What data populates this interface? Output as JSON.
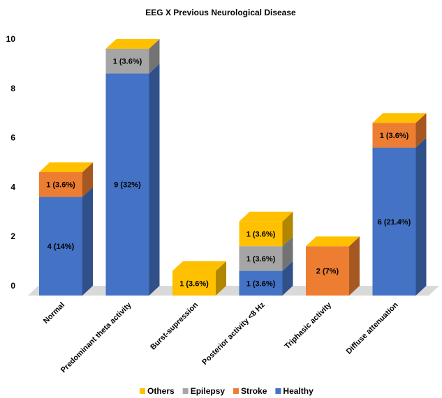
{
  "chart_data": {
    "type": "bar",
    "stacked": true,
    "style": "3d-column",
    "title": "EEG X Previous Neurological Disease",
    "xlabel": "",
    "ylabel": "",
    "ylim": [
      0,
      10
    ],
    "yticks": [
      "0",
      "2",
      "4",
      "6",
      "8",
      "10"
    ],
    "grid": false,
    "legend_position": "bottom",
    "categories": [
      "Normal",
      "Predominant theta activity",
      "Burst-supression",
      "Posterior activity <8 Hz",
      "Triphasic activity",
      "Diffuse attenuation"
    ],
    "series": [
      {
        "name": "Healthy",
        "color": "#4472C4",
        "values": [
          4,
          9,
          0,
          1,
          0,
          6
        ],
        "labels": [
          "4 (14%)",
          "9 (32%)",
          "",
          "1 (3.6%)",
          "",
          "6 (21.4%)"
        ]
      },
      {
        "name": "Stroke",
        "color": "#ED7D31",
        "values": [
          1,
          0,
          0,
          0,
          2,
          1
        ],
        "labels": [
          "1 (3.6%)",
          "",
          "",
          "",
          "2 (7%)",
          "1 (3.6%)"
        ]
      },
      {
        "name": "Epilepsy",
        "color": "#A5A5A5",
        "values": [
          0,
          1,
          0,
          1,
          0,
          0
        ],
        "labels": [
          "",
          "1 (3.6%)",
          "",
          "1 (3.6%)",
          "",
          ""
        ]
      },
      {
        "name": "Others",
        "color": "#FFC000",
        "values": [
          0,
          0,
          1,
          1,
          0,
          0
        ],
        "labels": [
          "",
          "",
          "1 (3.6%)",
          "1 (3.6%)",
          "",
          ""
        ]
      }
    ],
    "legend_order": [
      "Others",
      "Epilepsy",
      "Stroke",
      "Healthy"
    ]
  }
}
